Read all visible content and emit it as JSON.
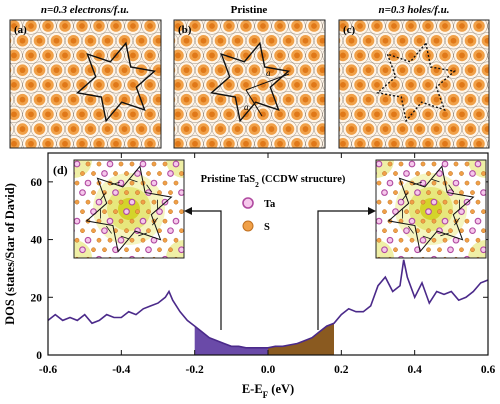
{
  "panel_titles": {
    "a": "n=0.3 electrons/f.u.",
    "b": "Pristine",
    "c": "n=0.3 holes/f.u."
  },
  "panel_labels": {
    "a": "(a)",
    "b": "(b)",
    "c": "(c)",
    "d": "(d)"
  },
  "b_vector_labels": {
    "a1": "a",
    "a2": "a"
  },
  "colors": {
    "orange": "#f0a048",
    "orange_dark": "#e07818",
    "purple": "#6a4aa8",
    "brown": "#8a5a20",
    "dos_line": "#4b2a8a",
    "ta_ring": "#b04aa0",
    "yellow": "#d4d42a"
  },
  "inset": {
    "title": "Pristine TaS",
    "subscript": "2",
    "title_suffix": " (CCDW structure)",
    "legend": [
      {
        "label": "Ta",
        "color": "#b04aa0"
      },
      {
        "label": "S",
        "color": "#f0a048"
      }
    ]
  },
  "chart_data": {
    "type": "line",
    "xlabel": "E-E",
    "xlabel_subscript": "F",
    "xlabel_unit": " (eV)",
    "ylabel": "DOS (states/Star of David)",
    "xlim": [
      -0.6,
      0.6
    ],
    "ylim": [
      0,
      70
    ],
    "xticks": [
      -0.6,
      -0.4,
      -0.2,
      0.0,
      0.2,
      0.4,
      0.6
    ],
    "xtick_labels": [
      "-0.6",
      "-0.4",
      "-0.2",
      "0.0",
      "0.2",
      "0.4",
      "0.6"
    ],
    "yticks": [
      0,
      20,
      40,
      60
    ],
    "ytick_labels": [
      "0",
      "20",
      "40",
      "60"
    ],
    "shaded_regions": [
      {
        "from": -0.2,
        "to": 0.0,
        "color": "#6a4aa8"
      },
      {
        "from": 0.0,
        "to": 0.18,
        "color": "#8a5a20"
      }
    ],
    "series": [
      {
        "x": [
          -0.6,
          -0.58,
          -0.56,
          -0.54,
          -0.52,
          -0.5,
          -0.48,
          -0.46,
          -0.44,
          -0.42,
          -0.4,
          -0.38,
          -0.36,
          -0.34,
          -0.32,
          -0.3,
          -0.28,
          -0.27,
          -0.26,
          -0.24,
          -0.22,
          -0.2,
          -0.18,
          -0.16,
          -0.14,
          -0.12,
          -0.1,
          -0.08,
          -0.06,
          -0.04,
          -0.02,
          0.0,
          0.02,
          0.04,
          0.06,
          0.08,
          0.1,
          0.12,
          0.14,
          0.16,
          0.18,
          0.2,
          0.22,
          0.24,
          0.26,
          0.28,
          0.3,
          0.32,
          0.34,
          0.36,
          0.37,
          0.38,
          0.4,
          0.42,
          0.44,
          0.46,
          0.48,
          0.5,
          0.52,
          0.54,
          0.56,
          0.58,
          0.6
        ],
        "y": [
          12,
          14,
          12,
          13,
          12,
          14,
          11,
          12,
          14,
          13,
          13,
          15,
          14,
          16,
          17,
          18,
          20,
          22,
          19,
          15,
          12,
          10,
          8,
          6,
          5,
          4,
          3,
          3,
          2.5,
          2.5,
          2.5,
          2.5,
          3,
          3,
          3.5,
          4,
          5,
          6,
          8,
          10,
          11,
          14,
          16,
          15,
          15,
          17,
          24,
          27,
          22,
          24,
          33,
          27,
          20,
          25,
          18,
          22,
          21,
          22,
          19,
          20,
          22,
          25,
          26
        ]
      }
    ]
  }
}
